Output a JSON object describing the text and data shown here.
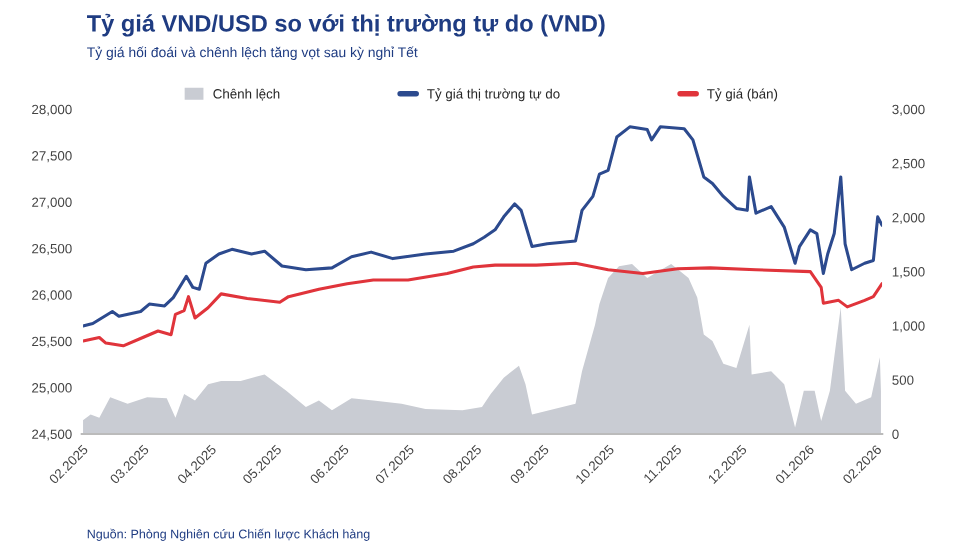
{
  "chart_data": {
    "type": "line",
    "title": "Tỷ giá VND/USD so với thị trường tự do (VND)",
    "subtitle": "Tỷ giá hối đoái và chênh lệch tăng vọt sau kỳ nghỉ Tết",
    "annotations": [
      "Nguồn: Phòng Nghiên cứu Chiến lược Khách hàng"
    ],
    "series": [
      {
        "name": "Chênh lệch",
        "type": "area",
        "axis": "y2",
        "color": "#c9ccd3",
        "x": [
          "2025-02-01",
          "2025-02-05",
          "2025-02-09",
          "2025-02-14",
          "2025-02-22",
          "2025-03-03",
          "2025-03-12",
          "2025-03-16",
          "2025-03-20",
          "2025-03-25",
          "2025-03-31",
          "2025-04-06",
          "2025-04-15",
          "2025-04-26",
          "2025-05-06",
          "2025-05-15",
          "2025-05-21",
          "2025-05-27",
          "2025-06-05",
          "2025-06-15",
          "2025-06-28",
          "2025-07-09",
          "2025-07-26",
          "2025-08-04",
          "2025-08-08",
          "2025-08-14",
          "2025-08-21",
          "2025-08-24",
          "2025-08-27",
          "2025-09-16",
          "2025-09-19",
          "2025-09-25",
          "2025-09-27",
          "2025-10-01",
          "2025-10-06",
          "2025-10-12",
          "2025-10-19",
          "2025-10-24",
          "2025-10-30",
          "2025-11-07",
          "2025-11-11",
          "2025-11-14",
          "2025-11-18",
          "2025-11-23",
          "2025-11-29",
          "2025-12-05",
          "2025-12-06",
          "2025-12-15",
          "2025-12-21",
          "2025-12-26",
          "2025-12-30",
          "2026-01-04",
          "2026-01-07",
          "2026-01-11",
          "2026-01-16",
          "2026-01-18",
          "2026-01-23",
          "2026-01-30",
          "2026-02-03",
          "2026-02-04"
        ],
        "values": [
          120,
          180,
          150,
          340,
          280,
          340,
          330,
          150,
          370,
          310,
          460,
          490,
          490,
          550,
          400,
          250,
          310,
          220,
          330,
          310,
          280,
          230,
          220,
          250,
          370,
          520,
          630,
          460,
          180,
          280,
          580,
          1010,
          1200,
          1440,
          1550,
          1570,
          1440,
          1500,
          1570,
          1440,
          1260,
          920,
          860,
          650,
          610,
          1010,
          550,
          580,
          460,
          60,
          400,
          400,
          120,
          400,
          1170,
          400,
          280,
          340,
          710,
          90
        ]
      },
      {
        "name": "Tỷ giá thị trường tự do",
        "color": "#2c4a8e",
        "x": [
          "2025-02-01",
          "2025-02-06",
          "2025-02-15",
          "2025-02-18",
          "2025-02-28",
          "2025-03-04",
          "2025-03-11",
          "2025-03-15",
          "2025-03-21",
          "2025-03-24",
          "2025-03-27",
          "2025-03-30",
          "2025-04-05",
          "2025-04-11",
          "2025-04-20",
          "2025-04-26",
          "2025-05-04",
          "2025-05-15",
          "2025-05-27",
          "2025-06-05",
          "2025-06-14",
          "2025-06-24",
          "2025-07-09",
          "2025-07-22",
          "2025-07-31",
          "2025-08-05",
          "2025-08-10",
          "2025-08-14",
          "2025-08-19",
          "2025-08-22",
          "2025-08-27",
          "2025-09-03",
          "2025-09-16",
          "2025-09-19",
          "2025-09-24",
          "2025-09-27",
          "2025-10-01",
          "2025-10-05",
          "2025-10-11",
          "2025-10-19",
          "2025-10-21",
          "2025-10-25",
          "2025-11-05",
          "2025-11-09",
          "2025-11-14",
          "2025-11-18",
          "2025-11-23",
          "2025-11-29",
          "2025-12-04",
          "2025-12-05",
          "2025-12-08",
          "2025-12-15",
          "2025-12-21",
          "2025-12-26",
          "2025-12-28",
          "2026-01-02",
          "2026-01-05",
          "2026-01-08",
          "2026-01-10",
          "2026-01-13",
          "2026-01-16",
          "2026-01-18",
          "2026-01-21",
          "2026-01-27",
          "2026-01-31",
          "2026-02-02",
          "2026-02-04"
        ],
        "values": [
          25660,
          25690,
          25820,
          25770,
          25820,
          25900,
          25880,
          25970,
          26200,
          26080,
          26060,
          26340,
          26440,
          26490,
          26440,
          26470,
          26310,
          26270,
          26290,
          26410,
          26460,
          26390,
          26440,
          26470,
          26550,
          26620,
          26700,
          26840,
          26980,
          26910,
          26520,
          26550,
          26580,
          26910,
          27060,
          27300,
          27340,
          27700,
          27810,
          27780,
          27670,
          27810,
          27790,
          27670,
          27270,
          27200,
          27060,
          26930,
          26910,
          27270,
          26880,
          26950,
          26730,
          26340,
          26520,
          26700,
          26660,
          26230,
          26440,
          26660,
          27270,
          26550,
          26270,
          26340,
          26370,
          26840,
          26750
        ]
      },
      {
        "name": "Tỷ giá (bán)",
        "color": "#e0343b",
        "x": [
          "2025-02-01",
          "2025-02-09",
          "2025-02-12",
          "2025-02-20",
          "2025-03-01",
          "2025-03-08",
          "2025-03-14",
          "2025-03-16",
          "2025-03-20",
          "2025-03-22",
          "2025-03-25",
          "2025-03-31",
          "2025-04-06",
          "2025-04-18",
          "2025-05-03",
          "2025-05-07",
          "2025-05-21",
          "2025-06-03",
          "2025-06-15",
          "2025-07-01",
          "2025-07-19",
          "2025-07-31",
          "2025-08-10",
          "2025-08-29",
          "2025-09-16",
          "2025-10-01",
          "2025-10-17",
          "2025-11-02",
          "2025-11-17",
          "2025-12-08",
          "2026-01-02",
          "2026-01-07",
          "2026-01-08",
          "2026-01-15",
          "2026-01-19",
          "2026-01-27",
          "2026-01-31",
          "2026-02-04"
        ],
        "values": [
          25500,
          25540,
          25480,
          25450,
          25540,
          25610,
          25570,
          25790,
          25830,
          25980,
          25750,
          25860,
          26010,
          25960,
          25920,
          25980,
          26060,
          26120,
          26160,
          26160,
          26230,
          26300,
          26320,
          26320,
          26340,
          26270,
          26230,
          26280,
          26290,
          26270,
          26250,
          26080,
          25910,
          25940,
          25870,
          25940,
          25980,
          26120
        ]
      }
    ],
    "ylim": [
      24500,
      28000
    ],
    "yticks": [
      {
        "value": 24500,
        "label": "24,500"
      },
      {
        "value": 25000,
        "label": "25,000"
      },
      {
        "value": 25500,
        "label": "25,500"
      },
      {
        "value": 26000,
        "label": "26,000"
      },
      {
        "value": 26500,
        "label": "26,500"
      },
      {
        "value": 27000,
        "label": "27,000"
      },
      {
        "value": 27500,
        "label": "27,500"
      },
      {
        "value": 28000,
        "label": "28,000"
      }
    ],
    "y2lim": [
      0,
      3000
    ],
    "y2ticks": [
      0,
      500,
      {
        "value": 1000,
        "label": "1,000"
      },
      {
        "value": 1500,
        "label": "1,500"
      },
      {
        "value": 2000,
        "label": "2,000"
      },
      {
        "value": 2500,
        "label": "2,500"
      },
      {
        "value": 3000,
        "label": "3,000"
      }
    ],
    "xlim": [
      "2025-02-01",
      "2026-02-04"
    ],
    "xticks": [
      {
        "value": "2025-02-01",
        "label": "02.2025"
      },
      {
        "value": "2025-03-01",
        "label": "03.2025"
      },
      {
        "value": "2025-04-01",
        "label": "04.2025"
      },
      {
        "value": "2025-05-01",
        "label": "05.2025"
      },
      {
        "value": "2025-06-01",
        "label": "06.2025"
      },
      {
        "value": "2025-07-01",
        "label": "07.2025"
      },
      {
        "value": "2025-08-01",
        "label": "08.2025"
      },
      {
        "value": "2025-09-01",
        "label": "09.2025"
      },
      {
        "value": "2025-10-01",
        "label": "10.2025"
      },
      {
        "value": "2025-11-01",
        "label": "11.2025"
      },
      {
        "value": "2025-12-01",
        "label": "12.2025"
      },
      {
        "value": "2026-01-01",
        "label": "01.2026"
      },
      {
        "value": "2026-02-01",
        "label": "02.2026"
      }
    ],
    "legend": "top",
    "grid": false
  }
}
